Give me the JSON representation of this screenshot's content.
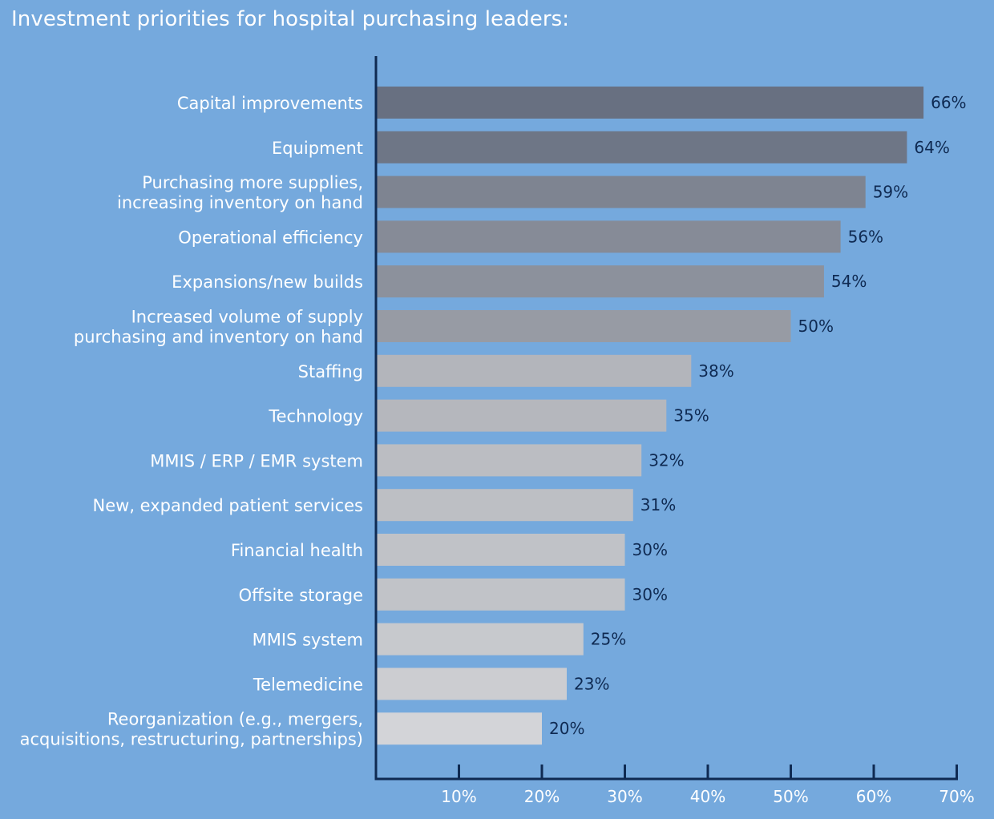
{
  "chart_data": {
    "type": "bar",
    "orientation": "horizontal",
    "title": "Investment priorities for hospital purchasing leaders:",
    "xlabel": "",
    "ylabel": "",
    "categories": [
      [
        "Capital improvements"
      ],
      [
        "Equipment"
      ],
      [
        "Purchasing more supplies,",
        "increasing inventory on hand"
      ],
      [
        "Operational efficiency"
      ],
      [
        "Expansions/new builds"
      ],
      [
        "Increased volume of supply",
        "purchasing and inventory on hand"
      ],
      [
        "Staffing"
      ],
      [
        "Technology"
      ],
      [
        "MMIS / ERP / EMR system"
      ],
      [
        "New, expanded patient services"
      ],
      [
        "Financial health"
      ],
      [
        "Offsite storage"
      ],
      [
        "MMIS system"
      ],
      [
        "Telemedicine"
      ],
      [
        "Reorganization (e.g., mergers,",
        "acquisitions, restructuring, partnerships)"
      ]
    ],
    "values": [
      66,
      64,
      59,
      56,
      54,
      50,
      38,
      35,
      32,
      31,
      30,
      30,
      25,
      23,
      20
    ],
    "value_labels": [
      "66%",
      "64%",
      "59%",
      "56%",
      "54%",
      "50%",
      "38%",
      "35%",
      "32%",
      "31%",
      "30%",
      "30%",
      "25%",
      "23%",
      "20%"
    ],
    "bar_colors": [
      "#687081",
      "#6e7686",
      "#7e8491",
      "#868b97",
      "#8c919c",
      "#979ba4",
      "#b3b5bb",
      "#b5b7bd",
      "#bbbdc2",
      "#bdbfc4",
      "#c0c2c7",
      "#c1c3c8",
      "#c7c9cd",
      "#cccdd1",
      "#d3d4d8"
    ],
    "xlim": [
      0,
      70
    ],
    "xticks": [
      10,
      20,
      30,
      40,
      50,
      60,
      70
    ],
    "xtick_labels": [
      "10%",
      "20%",
      "30%",
      "40%",
      "50%",
      "60%",
      "70%"
    ],
    "grid": false,
    "legend": "none"
  },
  "colors": {
    "background": "#75a9dd",
    "axis": "#0f2a52",
    "category_text": "#ffffff",
    "value_text": "#0f2a52"
  }
}
